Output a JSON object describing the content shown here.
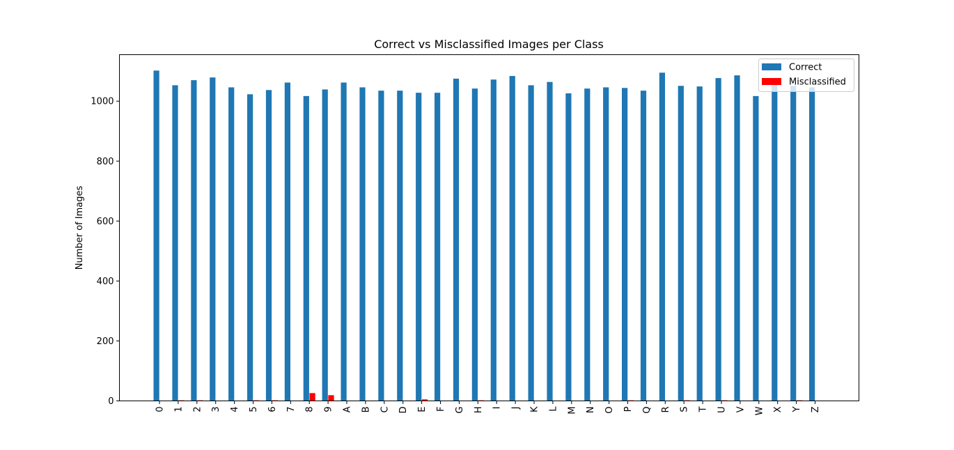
{
  "chart_data": {
    "type": "bar",
    "title": "Correct vs Misclassified Images per Class",
    "xlabel": "",
    "ylabel": "Number of Images",
    "ylim": [
      0,
      1155
    ],
    "yticks": [
      0,
      200,
      400,
      600,
      800,
      1000
    ],
    "grid": false,
    "legend_position": "top-right",
    "categories": [
      "0",
      "1",
      "2",
      "3",
      "4",
      "5",
      "6",
      "7",
      "8",
      "9",
      "A",
      "B",
      "C",
      "D",
      "E",
      "F",
      "G",
      "H",
      "I",
      "J",
      "K",
      "L",
      "M",
      "N",
      "O",
      "P",
      "Q",
      "R",
      "S",
      "T",
      "U",
      "V",
      "W",
      "X",
      "Y",
      "Z"
    ],
    "series": [
      {
        "name": "Correct",
        "color": "#1f77b4",
        "values": [
          1102,
          1053,
          1070,
          1079,
          1046,
          1023,
          1037,
          1062,
          1017,
          1039,
          1062,
          1046,
          1035,
          1035,
          1028,
          1028,
          1075,
          1042,
          1072,
          1084,
          1053,
          1064,
          1026,
          1042,
          1046,
          1044,
          1035,
          1095,
          1051,
          1049,
          1077,
          1086,
          1017,
          1055,
          1051,
          1046
        ]
      },
      {
        "name": "Misclassified",
        "color": "#ff0000",
        "values": [
          0,
          2,
          2,
          0,
          0,
          2,
          2,
          0,
          26,
          19,
          0,
          0,
          0,
          0,
          5,
          0,
          0,
          2,
          0,
          0,
          0,
          0,
          0,
          0,
          0,
          2,
          0,
          0,
          2,
          0,
          2,
          0,
          0,
          0,
          2,
          0
        ]
      }
    ]
  }
}
